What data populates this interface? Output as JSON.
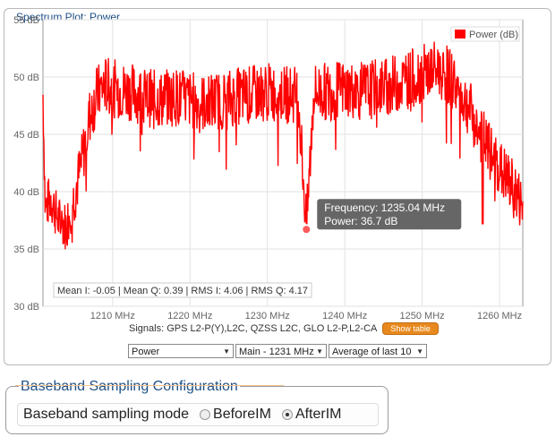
{
  "panel": {
    "title": "Spectrum Plot: Power"
  },
  "chart_data": {
    "type": "line",
    "title": "",
    "xlabel": "",
    "ylabel": "",
    "x_range": [
      1201,
      1263
    ],
    "ylim": [
      30,
      55
    ],
    "x_ticks": [
      "1210 MHz",
      "1220 MHz",
      "1230 MHz",
      "1240 MHz",
      "1250 MHz",
      "1260 MHz"
    ],
    "x_tick_values": [
      1210,
      1220,
      1230,
      1240,
      1250,
      1260
    ],
    "y_ticks": [
      "55 dB",
      "50 dB",
      "45 dB",
      "40 dB",
      "35 dB",
      "30 dB"
    ],
    "y_tick_values": [
      55,
      50,
      45,
      40,
      35,
      30
    ],
    "grid": true,
    "legend_position": "top-right",
    "series": [
      {
        "name": "Power (dB)",
        "color": "#ff0000",
        "points": [
          [
            1201.0,
            48.5
          ],
          [
            1201.3,
            38.5
          ],
          [
            1202,
            39.5
          ],
          [
            1203,
            37.5
          ],
          [
            1204,
            37.0
          ],
          [
            1205,
            39.5
          ],
          [
            1206,
            42.5
          ],
          [
            1207,
            46.5
          ],
          [
            1208,
            48.5
          ],
          [
            1209,
            49.3
          ],
          [
            1210,
            49.0
          ],
          [
            1212,
            48.8
          ],
          [
            1214,
            48.3
          ],
          [
            1216,
            48.0
          ],
          [
            1218,
            48.3
          ],
          [
            1220,
            48.0
          ],
          [
            1222,
            47.7
          ],
          [
            1224,
            48.0
          ],
          [
            1226,
            48.3
          ],
          [
            1228,
            48.5
          ],
          [
            1230,
            48.7
          ],
          [
            1232,
            48.5
          ],
          [
            1234,
            48.5
          ],
          [
            1235.04,
            36.7
          ],
          [
            1236,
            48.7
          ],
          [
            1238,
            48.7
          ],
          [
            1240,
            49.0
          ],
          [
            1242,
            48.7
          ],
          [
            1244,
            49.0
          ],
          [
            1246,
            49.3
          ],
          [
            1248,
            49.7
          ],
          [
            1250,
            50.3
          ],
          [
            1252,
            50.7
          ],
          [
            1253,
            50.3
          ],
          [
            1254,
            49.7
          ],
          [
            1255,
            48.3
          ],
          [
            1256,
            47.5
          ],
          [
            1257,
            45.5
          ],
          [
            1258,
            44.5
          ],
          [
            1259,
            43.0
          ],
          [
            1260,
            42.0
          ],
          [
            1261,
            41.0
          ],
          [
            1262,
            40.0
          ],
          [
            1263,
            38.5
          ]
        ]
      }
    ],
    "tooltip": {
      "frequency": "Frequency: 1235.04 MHz",
      "power": "Power: 36.7 dB",
      "x": 1235.04,
      "y": 36.7
    },
    "stats": "Mean I: -0.05 | Mean Q: 0.39 | RMS I: 4.06 | RMS Q: 4.17"
  },
  "signals": {
    "text": "Signals: GPS L2-P(Y),L2C, QZSS L2C, GLO L2-P,L2-CA",
    "button": "Show table"
  },
  "selects": [
    {
      "value": "Power"
    },
    {
      "value": "Main - 1231 MHz"
    },
    {
      "value": "Average of last 10"
    }
  ],
  "config": {
    "title": "Baseband Sampling Configuration",
    "label": "Baseband sampling mode",
    "options": [
      {
        "label": "BeforeIM",
        "checked": false
      },
      {
        "label": "AfterIM",
        "checked": true
      }
    ]
  },
  "colors": {
    "accent": "#1d4f86",
    "series": "#ff0000",
    "button": "#e8891d"
  }
}
